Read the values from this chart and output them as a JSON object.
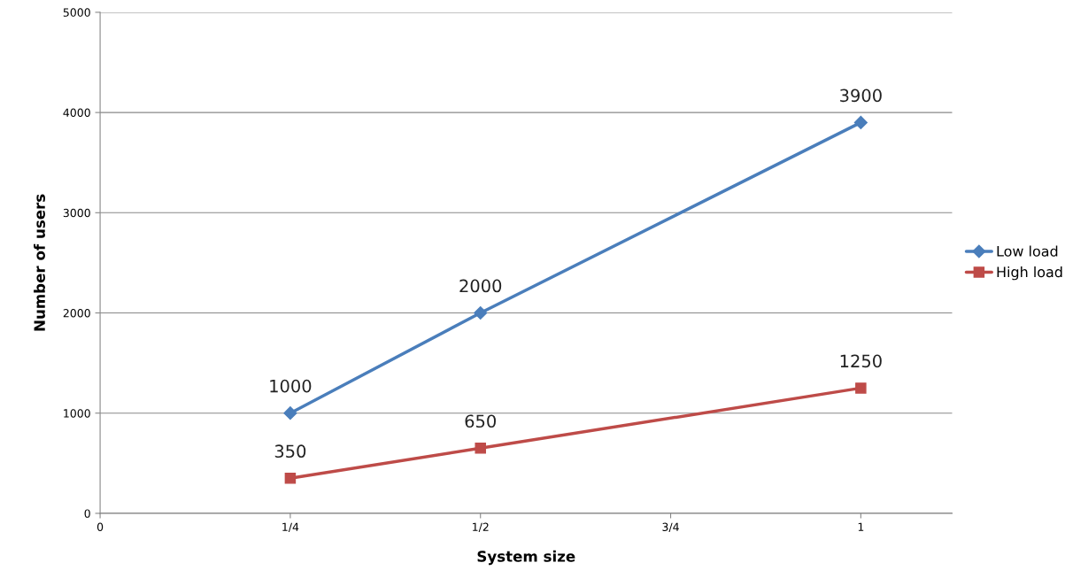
{
  "chart_data": {
    "type": "line",
    "xlabel": "System size",
    "ylabel": "Number of users",
    "x": [
      0.25,
      0.5,
      1
    ],
    "series": [
      {
        "name": "Low load",
        "color": "#4a7ebb",
        "marker": "diamond",
        "values": [
          1000,
          2000,
          3900
        ]
      },
      {
        "name": "High load",
        "color": "#be4b48",
        "marker": "square",
        "values": [
          350,
          650,
          1250
        ]
      }
    ],
    "xlim": [
      0,
      1.12
    ],
    "xticks": [
      0,
      {
        "value": 0.25,
        "label": "1/4"
      },
      {
        "value": 0.5,
        "label": "1/2"
      },
      {
        "value": 0.75,
        "label": "3/4"
      },
      1
    ],
    "ylim": [
      0,
      5000
    ],
    "yticks": [
      0,
      1000,
      2000,
      3000,
      4000,
      5000
    ],
    "grid": "y",
    "legend": "right",
    "data_labels": true,
    "line_style": "solid"
  }
}
